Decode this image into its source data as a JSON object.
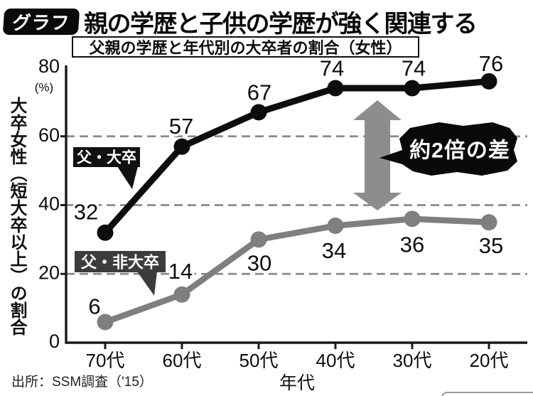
{
  "header": {
    "badge": "グラフ",
    "title": "親の学歴と子供の学歴が強く関連する"
  },
  "subtitle": "父親の学歴と年代別の大卒者の割合（女性）",
  "y_axis": {
    "title": "大卒女性（短大卒以上）の割合",
    "unit": "(%)"
  },
  "x_axis": {
    "title": "年代"
  },
  "annotation": {
    "label": "約2倍の差"
  },
  "source": "出所：SSM調査（'15）",
  "colors": {
    "father_college": "#0d0d0d",
    "father_noncollege": "#7f7f7f",
    "arrow": "#8d8d8d",
    "legend_noncollege_box": "#3c3c3c",
    "gridline": "#8a8a8a"
  },
  "chart_data": {
    "type": "line",
    "title": "父親の学歴と年代別の大卒者の割合（女性）",
    "xlabel": "年代",
    "ylabel": "大卒女性（短大卒以上）の割合",
    "categories": [
      "70代",
      "60代",
      "50代",
      "40代",
      "30代",
      "20代"
    ],
    "series": [
      {
        "name": "父・大卒",
        "values": [
          32,
          57,
          67,
          74,
          74,
          76
        ],
        "color": "#0d0d0d"
      },
      {
        "name": "父・非大卒",
        "values": [
          6,
          14,
          30,
          34,
          36,
          35
        ],
        "color": "#7f7f7f"
      }
    ],
    "ylim": [
      0,
      80
    ],
    "yticks": [
      0,
      20,
      40,
      60,
      80
    ],
    "grid": "horizontal dashed at 20, 40, 60",
    "legend_position": "labels attached to lines",
    "annotation_text": "約2倍の差"
  }
}
